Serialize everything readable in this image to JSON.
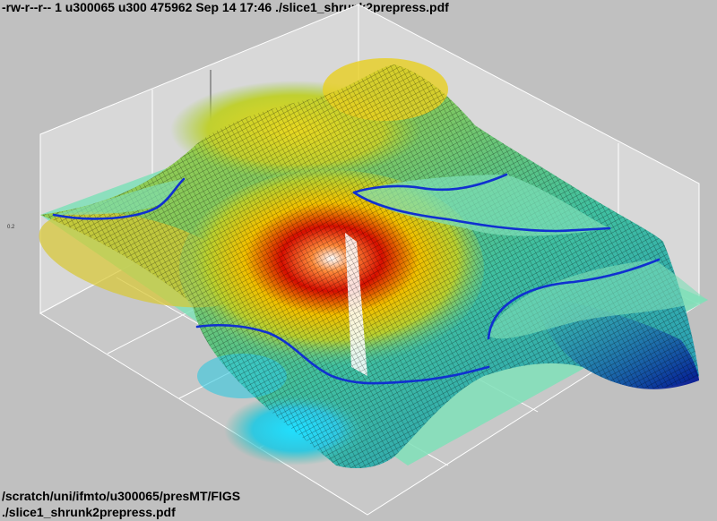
{
  "header": {
    "listing": "-rw-r--r-- 1 u300065 u300 475962 Sep 14 17:46 ./slice1_shrunk2prepress.pdf"
  },
  "footer": {
    "path": "/scratch/uni/ifmto/u300065/presMT/FIGS",
    "file": "./slice1_shrunk2prepress.pdf"
  },
  "figure": {
    "axis_tick_label": "0.2",
    "colors": {
      "background": "#c0c0c0",
      "slice_plane": "#7fe0b8",
      "contour_line": "#1030d0",
      "grid": "#ffffff"
    },
    "colormap": [
      "#00008f",
      "#0050ff",
      "#00d0ff",
      "#40e0a0",
      "#b0d020",
      "#ffe000",
      "#ff8000",
      "#d00000",
      "#800000"
    ]
  }
}
